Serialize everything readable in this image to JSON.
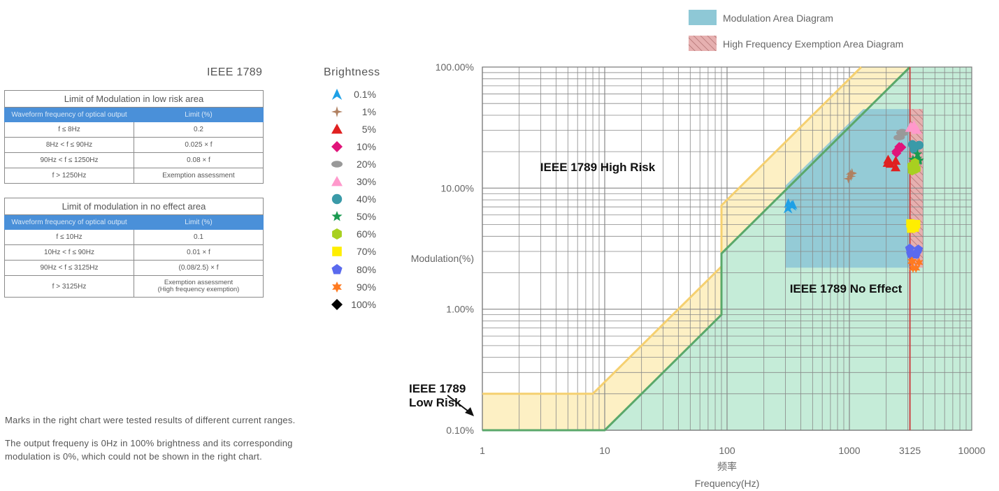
{
  "ieee_title": "IEEE 1789",
  "brightness_title": "Brightness",
  "table_low_risk": {
    "title": "Limit of Modulation in low risk area",
    "header": [
      "Waveform frequency of optical output",
      "Limit (%)"
    ],
    "rows": [
      [
        "f ≤ 8Hz",
        "0.2"
      ],
      [
        "8Hz < f ≤ 90Hz",
        "0.025 × f"
      ],
      [
        "90Hz < f ≤ 1250Hz",
        "0.08 × f"
      ],
      [
        "f > 1250Hz",
        "Exemption assessment"
      ]
    ]
  },
  "table_no_effect": {
    "title": "Limit of modulation in no effect area",
    "header": [
      "Waveform frequency of optical output",
      "Limit (%)"
    ],
    "rows": [
      [
        "f ≤ 10Hz",
        "0.1"
      ],
      [
        "10Hz < f ≤ 90Hz",
        "0.01 × f"
      ],
      [
        "90Hz < f ≤ 3125Hz",
        "(0.08/2.5) × f"
      ],
      [
        "f > 3125Hz",
        "Exemption assessment\n(High frequency exemption)"
      ]
    ]
  },
  "brightness_legend": [
    {
      "label": "0.1%",
      "color": "#1ea0e6",
      "shape": "spike-triangle"
    },
    {
      "label": "1%",
      "color": "#b08060",
      "shape": "four-point-star"
    },
    {
      "label": "5%",
      "color": "#e02020",
      "shape": "triangle"
    },
    {
      "label": "10%",
      "color": "#e0147a",
      "shape": "diamond"
    },
    {
      "label": "20%",
      "color": "#999999",
      "shape": "ellipse"
    },
    {
      "label": "30%",
      "color": "#ff99cc",
      "shape": "triangle"
    },
    {
      "label": "40%",
      "color": "#3a9aa8",
      "shape": "circle"
    },
    {
      "label": "50%",
      "color": "#1a9a50",
      "shape": "star"
    },
    {
      "label": "60%",
      "color": "#a8d020",
      "shape": "hexagon"
    },
    {
      "label": "70%",
      "color": "#ffee00",
      "shape": "square"
    },
    {
      "label": "80%",
      "color": "#5a6aee",
      "shape": "pentagon"
    },
    {
      "label": "90%",
      "color": "#ff7a20",
      "shape": "six-point-star"
    },
    {
      "label": "100%",
      "color": "#000000",
      "shape": "diamond"
    }
  ],
  "notes": [
    "Marks in the right chart were tested results of different current ranges.",
    "The output frequeny is 0Hz in 100% brightness and its corresponding",
    "modulation is 0%, which could not be shown in the right chart."
  ],
  "chart_data": {
    "type": "scatter",
    "x_scale": "log",
    "y_scale": "log",
    "xlim": [
      1,
      10000
    ],
    "ylim": [
      0.1,
      100
    ],
    "x_ticks": [
      "1",
      "10",
      "100",
      "1000",
      "3125",
      "10000"
    ],
    "y_ticks": [
      "0.10%",
      "1.00%",
      "10.00%",
      "100.00%"
    ],
    "ylabel": "Modulation(%)",
    "xlabel_cn": "频率",
    "xlabel": "Frequency(Hz)",
    "legend": [
      {
        "label": "Modulation Area Diagram",
        "color": "#8ec8d6"
      },
      {
        "label": "High Frequency Exemption Area Diagram",
        "color": "#e8a8a8"
      }
    ],
    "region_labels": {
      "high_risk": "IEEE 1789 High Risk",
      "no_effect": "IEEE 1789 No Effect",
      "low_risk": "IEEE 1789\nLow Risk"
    },
    "low_risk_boundary": [
      [
        1,
        0.2
      ],
      [
        8,
        0.2
      ],
      [
        90,
        2.25
      ],
      [
        90,
        7.2
      ],
      [
        1250,
        100
      ]
    ],
    "no_effect_boundary": [
      [
        1,
        0.1
      ],
      [
        10,
        0.1
      ],
      [
        90,
        0.9
      ],
      [
        90,
        2.88
      ],
      [
        3125,
        100
      ]
    ],
    "modulation_area": {
      "x": [
        300,
        3125
      ],
      "y": [
        2.2,
        45
      ]
    },
    "exemption_area": {
      "x": [
        3125,
        4000
      ],
      "y": [
        2.2,
        45
      ]
    },
    "exemption_line": 3125,
    "series": [
      {
        "name": "0.1%",
        "x": 340,
        "y": 7.2
      },
      {
        "name": "1%",
        "x": 1020,
        "y": 12.5
      },
      {
        "name": "5%",
        "x": 2200,
        "y": 16
      },
      {
        "name": "10%",
        "x": 2580,
        "y": 21
      },
      {
        "name": "20%",
        "x": 2720,
        "y": 28
      },
      {
        "name": "30%",
        "x": 3400,
        "y": 31
      },
      {
        "name": "40%",
        "x": 3420,
        "y": 22
      },
      {
        "name": "50%",
        "x": 3450,
        "y": 18
      },
      {
        "name": "60%",
        "x": 3400,
        "y": 15
      },
      {
        "name": "70%",
        "x": 3450,
        "y": 5
      },
      {
        "name": "80%",
        "x": 3400,
        "y": 3
      },
      {
        "name": "90%",
        "x": 3480,
        "y": 2.3
      }
    ]
  }
}
